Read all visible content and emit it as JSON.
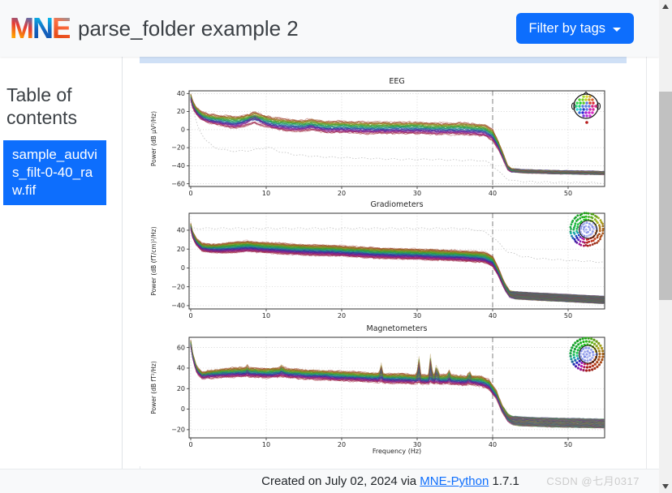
{
  "header": {
    "logo_m": "M",
    "logo_n": "N",
    "logo_e": "E",
    "title": "parse_folder example 2",
    "filter_button": "Filter by tags"
  },
  "sidebar": {
    "heading": "Table of contents",
    "items": [
      {
        "label": "sample_audvis_filt-0-40_raw.fif",
        "active": true
      }
    ]
  },
  "footer": {
    "prefix": "Created on July 02, 2024 via ",
    "link": "MNE-Python",
    "suffix": " 1.7.1",
    "watermark": "CSDN @七月0317"
  },
  "colors": {
    "accent": "#0d6efd",
    "highlight_strip": "#cfe0f6",
    "grid": "#c9c9c9",
    "spine": "#333333",
    "cutoff_line": "#aaaaaa",
    "bad_channel": "#c4c4c4",
    "scroll_track": "#f1f1f1",
    "scroll_thumb": "#c1c1c1"
  },
  "chart_data": [
    {
      "type": "line",
      "title": "EEG",
      "ylabel": "Power (dB µV²/Hz)",
      "xlabel": "",
      "xlim": [
        0,
        54.8
      ],
      "ylim": [
        -63,
        43
      ],
      "xticks": [
        0,
        10,
        20,
        30,
        40,
        50
      ],
      "yticks": [
        40,
        20,
        0,
        -20,
        -40,
        -60
      ],
      "grid": true,
      "legend": "none",
      "cutoff_hz": 40,
      "n_traces": 59,
      "spread_pre": 6,
      "spread_post": 2,
      "mean": {
        "x": [
          0,
          0.3,
          0.8,
          1.5,
          2.5,
          4,
          6,
          7.5,
          8.5,
          9.5,
          11,
          13,
          15,
          16,
          18,
          20,
          23,
          26,
          30,
          33,
          36,
          38,
          39,
          40,
          40.8,
          41.5,
          42,
          42.5,
          44,
          48,
          55
        ],
        "y": [
          36,
          27,
          20,
          15,
          12,
          10,
          8,
          10,
          12,
          10,
          7,
          5,
          4,
          5,
          3,
          3,
          2,
          2,
          2,
          1,
          1,
          0,
          -1,
          -6,
          -18,
          -32,
          -42,
          -45,
          -46,
          -47,
          -48
        ]
      },
      "alpha_bump": {
        "center": 8.3,
        "width": 0.9,
        "amp": 5,
        "second_center": 15.8
      },
      "bad_channel": {
        "x": [
          0,
          0.5,
          1,
          2,
          3,
          4,
          6,
          8,
          10,
          10.5,
          12,
          14,
          17,
          20,
          24,
          28,
          32,
          36,
          38,
          39.5,
          41,
          42,
          43,
          46,
          55
        ],
        "y": [
          31,
          15,
          2,
          -12,
          -19,
          -22,
          -24,
          -23,
          -20,
          -20,
          -25,
          -28,
          -30,
          -31,
          -32,
          -33,
          -33,
          -34,
          -34,
          -36,
          -48,
          -55,
          -57,
          -58,
          -59
        ]
      },
      "inset": "eeg"
    },
    {
      "type": "line",
      "title": "Gradiometers",
      "ylabel": "Power (dB (fT/cm)²/Hz)",
      "xlabel": "",
      "xlim": [
        0,
        54.8
      ],
      "ylim": [
        -43.5,
        58
      ],
      "xticks": [
        0,
        10,
        20,
        30,
        40,
        50
      ],
      "yticks": [
        40,
        20,
        0,
        -20,
        -40
      ],
      "grid": true,
      "legend": "none",
      "cutoff_hz": 40,
      "n_traces": 160,
      "spread_pre": 5,
      "spread_post": 4,
      "mean": {
        "x": [
          0,
          0.3,
          0.8,
          1.5,
          2.5,
          4,
          6,
          7.5,
          9,
          11,
          13,
          16,
          20,
          24,
          28,
          32,
          35,
          38,
          39,
          40,
          40.8,
          41.6,
          42.3,
          43,
          45,
          50,
          55
        ],
        "y": [
          44,
          34,
          27,
          22,
          21,
          21,
          22,
          23,
          22,
          21,
          20,
          19,
          18,
          16,
          15,
          14,
          13,
          12,
          11,
          7,
          -5,
          -20,
          -28,
          -29,
          -30,
          -32,
          -34
        ]
      },
      "bad_channel": {
        "x": [
          0,
          2,
          5,
          10,
          15,
          20,
          25,
          30,
          33,
          35,
          36,
          37,
          38,
          39,
          40,
          41,
          42,
          44,
          46,
          50,
          55
        ],
        "y": [
          42,
          42,
          42,
          42,
          42,
          42,
          42,
          42,
          42,
          42,
          42,
          41,
          40,
          38,
          33,
          25,
          17,
          12,
          10,
          8,
          6
        ]
      },
      "inset": "meg-grad"
    },
    {
      "type": "line",
      "title": "Magnetometers",
      "ylabel": "Power (dB fT²/Hz)",
      "xlabel": "Frequency (Hz)",
      "xlim": [
        0,
        54.8
      ],
      "ylim": [
        -28,
        70
      ],
      "xticks": [
        0,
        10,
        20,
        30,
        40,
        50
      ],
      "yticks": [
        60,
        40,
        20,
        0,
        -20
      ],
      "grid": true,
      "legend": "none",
      "cutoff_hz": 40,
      "n_traces": 102,
      "spread_pre": 4,
      "spread_post": 4.5,
      "mean": {
        "x": [
          0,
          0.3,
          0.8,
          1.5,
          2.5,
          4,
          6,
          8,
          10,
          12,
          13,
          15,
          18,
          21,
          24,
          26,
          28,
          30,
          32,
          34,
          36,
          37.5,
          38.5,
          39.5,
          40.5,
          41.3,
          42,
          42.6,
          44,
          48,
          55
        ],
        "y": [
          64,
          50,
          38,
          33,
          34,
          35,
          36,
          36,
          35,
          36,
          35,
          34,
          33,
          32,
          31,
          30,
          30,
          29,
          29,
          29,
          28,
          28,
          27,
          24,
          14,
          0,
          -8,
          -11,
          -12,
          -13,
          -14
        ]
      },
      "spikes": [
        {
          "x": 25.2,
          "amp": 10
        },
        {
          "x": 30.2,
          "amp": 16
        },
        {
          "x": 31.8,
          "amp": 18
        },
        {
          "x": 32.6,
          "amp": 12
        },
        {
          "x": 34.2,
          "amp": 6
        },
        {
          "x": 36.9,
          "amp": 7
        },
        {
          "x": 12.1,
          "amp": 4
        },
        {
          "x": 7.5,
          "amp": 3
        }
      ],
      "inset": "meg-mag"
    }
  ]
}
